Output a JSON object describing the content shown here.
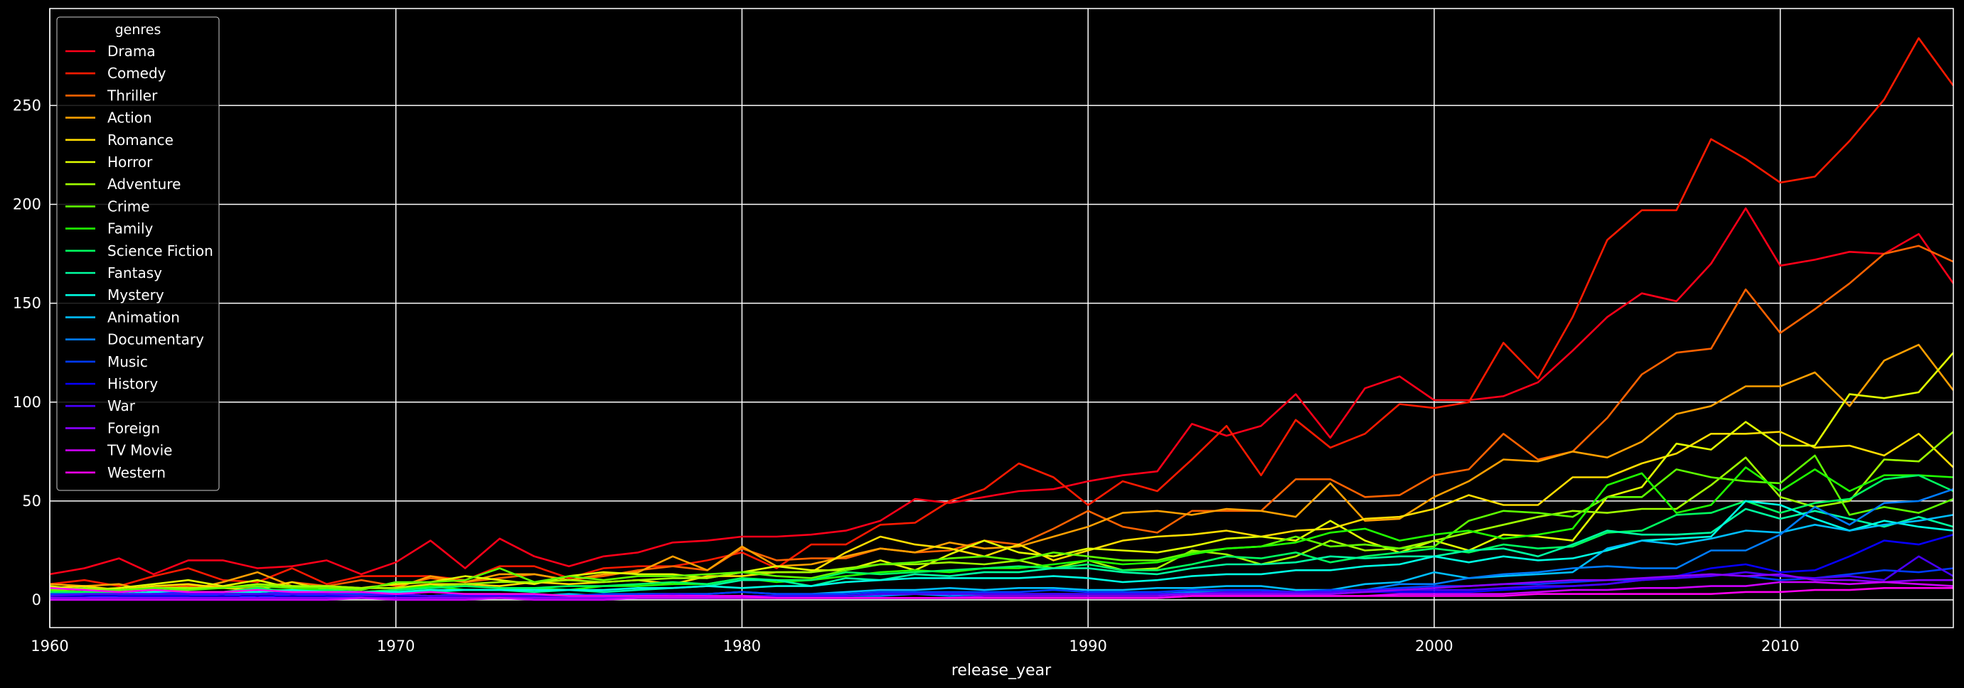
{
  "chart_data": {
    "type": "line",
    "xlabel": "release_year",
    "ylabel": "",
    "xlim": [
      1960,
      2015
    ],
    "ylim": [
      -14,
      299
    ],
    "xticks": [
      1960,
      1970,
      1980,
      1990,
      2000,
      2010
    ],
    "yticks": [
      0,
      50,
      100,
      150,
      200,
      250
    ],
    "grid": true,
    "legend_title": "genres",
    "legend_position": "top-left",
    "x": [
      1960,
      1961,
      1962,
      1963,
      1964,
      1965,
      1966,
      1967,
      1968,
      1969,
      1970,
      1971,
      1972,
      1973,
      1974,
      1975,
      1976,
      1977,
      1978,
      1979,
      1980,
      1981,
      1982,
      1983,
      1984,
      1985,
      1986,
      1987,
      1988,
      1989,
      1990,
      1991,
      1992,
      1993,
      1994,
      1995,
      1996,
      1997,
      1998,
      1999,
      2000,
      2001,
      2002,
      2003,
      2004,
      2005,
      2006,
      2007,
      2008,
      2009,
      2010,
      2011,
      2012,
      2013,
      2014,
      2015
    ],
    "series": [
      {
        "name": "Drama",
        "color": "#ff0019",
        "values": [
          13,
          16,
          21,
          13,
          20,
          20,
          16,
          17,
          20,
          13,
          19,
          30,
          16,
          31,
          22,
          17,
          22,
          24,
          29,
          30,
          32,
          32,
          33,
          35,
          40,
          51,
          49,
          52,
          55,
          56,
          60,
          63,
          65,
          89,
          83,
          88,
          104,
          82,
          107,
          113,
          101,
          101,
          103,
          110,
          126,
          143,
          155,
          151,
          170,
          198,
          169,
          172,
          176,
          175,
          185,
          160
        ]
      },
      {
        "name": "Comedy",
        "color": "#ff1a00",
        "values": [
          8,
          10,
          7,
          12,
          16,
          10,
          9,
          16,
          8,
          12,
          12,
          12,
          10,
          17,
          17,
          11,
          16,
          17,
          17,
          20,
          24,
          16,
          28,
          28,
          38,
          39,
          50,
          56,
          69,
          62,
          48,
          60,
          55,
          71,
          88,
          63,
          91,
          77,
          84,
          99,
          97,
          100,
          130,
          112,
          143,
          182,
          197,
          197,
          233,
          223,
          211,
          214,
          232,
          253,
          284,
          260
        ]
      },
      {
        "name": "Thriller",
        "color": "#ff6200",
        "values": [
          5,
          4,
          5,
          6,
          7,
          7,
          6,
          9,
          7,
          10,
          7,
          11,
          9,
          11,
          13,
          10,
          12,
          15,
          17,
          15,
          26,
          20,
          21,
          21,
          26,
          24,
          25,
          30,
          28,
          36,
          45,
          37,
          34,
          45,
          45,
          45,
          61,
          61,
          52,
          53,
          63,
          66,
          84,
          71,
          75,
          92,
          114,
          125,
          127,
          157,
          135,
          147,
          160,
          175,
          179,
          171
        ]
      },
      {
        "name": "Action",
        "color": "#ff9f00",
        "values": [
          8,
          7,
          8,
          4,
          5,
          9,
          14,
          7,
          6,
          6,
          6,
          12,
          9,
          13,
          13,
          10,
          13,
          14,
          22,
          15,
          27,
          17,
          18,
          22,
          26,
          24,
          29,
          26,
          27,
          32,
          37,
          44,
          45,
          43,
          46,
          45,
          42,
          59,
          40,
          41,
          52,
          60,
          71,
          70,
          75,
          72,
          80,
          94,
          98,
          108,
          108,
          115,
          98,
          121,
          129,
          106
        ]
      },
      {
        "name": "Romance",
        "color": "#ffdd00",
        "values": [
          6,
          7,
          5,
          7,
          8,
          6,
          5,
          9,
          5,
          6,
          6,
          8,
          8,
          7,
          9,
          8,
          9,
          10,
          8,
          12,
          12,
          14,
          14,
          24,
          32,
          28,
          26,
          22,
          28,
          20,
          25,
          30,
          32,
          33,
          35,
          32,
          35,
          36,
          41,
          42,
          46,
          53,
          48,
          48,
          62,
          62,
          69,
          74,
          84,
          84,
          85,
          77,
          78,
          73,
          84,
          67
        ]
      },
      {
        "name": "Horror",
        "color": "#e1ff00",
        "values": [
          7,
          5,
          6,
          8,
          10,
          7,
          10,
          6,
          7,
          6,
          8,
          9,
          12,
          10,
          8,
          12,
          14,
          13,
          13,
          11,
          14,
          17,
          15,
          15,
          20,
          15,
          23,
          30,
          24,
          22,
          26,
          25,
          24,
          27,
          31,
          32,
          30,
          40,
          30,
          24,
          30,
          25,
          33,
          32,
          30,
          52,
          57,
          79,
          76,
          90,
          78,
          78,
          104,
          102,
          105,
          125
        ]
      },
      {
        "name": "Adventure",
        "color": "#9fff00",
        "values": [
          5,
          6,
          5,
          6,
          6,
          6,
          8,
          7,
          7,
          6,
          6,
          7,
          8,
          9,
          9,
          10,
          9,
          10,
          11,
          11,
          14,
          14,
          14,
          16,
          18,
          18,
          19,
          18,
          20,
          16,
          20,
          15,
          16,
          25,
          23,
          18,
          22,
          30,
          25,
          26,
          30,
          34,
          38,
          42,
          45,
          44,
          46,
          46,
          58,
          72,
          52,
          47,
          50,
          71,
          70,
          85
        ]
      },
      {
        "name": "Crime",
        "color": "#5dff00",
        "values": [
          5,
          4,
          5,
          6,
          5,
          6,
          7,
          6,
          6,
          5,
          9,
          9,
          10,
          16,
          9,
          12,
          10,
          12,
          12,
          13,
          14,
          12,
          11,
          15,
          18,
          19,
          21,
          22,
          20,
          24,
          22,
          20,
          20,
          24,
          26,
          27,
          32,
          27,
          28,
          26,
          27,
          40,
          45,
          44,
          42,
          52,
          52,
          66,
          62,
          60,
          59,
          73,
          43,
          47,
          44,
          51
        ]
      },
      {
        "name": "Family",
        "color": "#1fff00",
        "values": [
          3,
          4,
          4,
          5,
          4,
          4,
          5,
          5,
          5,
          4,
          5,
          7,
          5,
          5,
          6,
          5,
          7,
          7,
          8,
          8,
          11,
          9,
          10,
          12,
          14,
          15,
          14,
          16,
          16,
          18,
          20,
          18,
          19,
          23,
          26,
          27,
          29,
          34,
          36,
          30,
          33,
          35,
          31,
          33,
          36,
          58,
          64,
          44,
          48,
          67,
          55,
          66,
          55,
          63,
          63,
          62
        ]
      },
      {
        "name": "Science Fiction",
        "color": "#00ff5f",
        "values": [
          4,
          4,
          4,
          5,
          4,
          4,
          6,
          4,
          5,
          4,
          5,
          6,
          7,
          6,
          6,
          7,
          7,
          8,
          9,
          8,
          11,
          10,
          10,
          14,
          13,
          14,
          15,
          16,
          17,
          16,
          18,
          15,
          15,
          18,
          22,
          21,
          24,
          19,
          22,
          24,
          26,
          24,
          28,
          26,
          27,
          34,
          35,
          43,
          44,
          50,
          44,
          49,
          51,
          61,
          63,
          55
        ]
      },
      {
        "name": "Fantasy",
        "color": "#00ffa1",
        "values": [
          2,
          3,
          3,
          3,
          4,
          3,
          3,
          4,
          3,
          4,
          4,
          4,
          5,
          5,
          4,
          5,
          4,
          5,
          6,
          7,
          10,
          10,
          7,
          11,
          10,
          13,
          12,
          14,
          14,
          16,
          16,
          14,
          13,
          16,
          18,
          18,
          19,
          22,
          21,
          22,
          22,
          25,
          26,
          22,
          28,
          35,
          33,
          33,
          34,
          46,
          41,
          45,
          41,
          37,
          42,
          37
        ]
      },
      {
        "name": "Mystery",
        "color": "#00ffe3",
        "values": [
          3,
          3,
          3,
          4,
          4,
          4,
          4,
          5,
          4,
          4,
          4,
          5,
          5,
          5,
          5,
          5,
          5,
          6,
          6,
          7,
          6,
          7,
          7,
          9,
          10,
          11,
          11,
          11,
          11,
          12,
          11,
          9,
          10,
          12,
          13,
          13,
          15,
          15,
          17,
          18,
          22,
          19,
          22,
          20,
          21,
          25,
          30,
          31,
          32,
          50,
          48,
          41,
          35,
          40,
          37,
          35
        ]
      },
      {
        "name": "Animation",
        "color": "#00beff",
        "values": [
          1,
          1,
          2,
          2,
          2,
          3,
          1,
          3,
          2,
          2,
          3,
          2,
          3,
          3,
          2,
          3,
          2,
          3,
          3,
          3,
          4,
          3,
          3,
          4,
          5,
          5,
          6,
          5,
          6,
          6,
          5,
          5,
          6,
          6,
          7,
          7,
          5,
          5,
          8,
          9,
          14,
          11,
          12,
          13,
          14,
          26,
          30,
          28,
          31,
          35,
          34,
          38,
          35,
          38,
          40,
          43
        ]
      },
      {
        "name": "Documentary",
        "color": "#007cff",
        "values": [
          1,
          1,
          1,
          1,
          1,
          1,
          1,
          1,
          1,
          1,
          1,
          1,
          1,
          1,
          1,
          1,
          1,
          1,
          1,
          1,
          2,
          2,
          2,
          2,
          2,
          3,
          2,
          3,
          3,
          3,
          3,
          3,
          3,
          4,
          4,
          4,
          4,
          4,
          5,
          8,
          8,
          11,
          13,
          14,
          16,
          17,
          16,
          16,
          25,
          25,
          33,
          47,
          38,
          49,
          50,
          56
        ]
      },
      {
        "name": "Music",
        "color": "#003aff",
        "values": [
          3,
          3,
          3,
          3,
          4,
          3,
          3,
          4,
          3,
          3,
          3,
          2,
          3,
          2,
          3,
          2,
          3,
          3,
          3,
          3,
          4,
          3,
          3,
          3,
          4,
          4,
          4,
          4,
          4,
          5,
          4,
          4,
          4,
          5,
          5,
          5,
          4,
          5,
          5,
          6,
          7,
          7,
          8,
          8,
          9,
          10,
          10,
          12,
          13,
          12,
          10,
          11,
          13,
          15,
          14,
          16
        ]
      },
      {
        "name": "History",
        "color": "#0700ff",
        "values": [
          2,
          2,
          2,
          2,
          2,
          2,
          2,
          2,
          2,
          2,
          2,
          2,
          2,
          2,
          2,
          2,
          2,
          2,
          2,
          2,
          2,
          2,
          2,
          2,
          3,
          3,
          3,
          3,
          3,
          3,
          3,
          3,
          3,
          3,
          3,
          3,
          3,
          3,
          4,
          4,
          4,
          4,
          5,
          6,
          7,
          8,
          10,
          12,
          16,
          18,
          14,
          15,
          22,
          30,
          28,
          33
        ]
      },
      {
        "name": "War",
        "color": "#4900ff",
        "values": [
          2,
          3,
          3,
          3,
          3,
          3,
          3,
          3,
          3,
          2,
          3,
          2,
          2,
          2,
          2,
          2,
          2,
          2,
          3,
          2,
          2,
          2,
          2,
          2,
          3,
          3,
          3,
          3,
          3,
          3,
          3,
          3,
          3,
          3,
          4,
          4,
          4,
          4,
          5,
          5,
          5,
          5,
          6,
          7,
          7,
          8,
          10,
          11,
          12,
          14,
          12,
          11,
          12,
          10,
          22,
          12
        ]
      },
      {
        "name": "Foreign",
        "color": "#8b00ff",
        "values": [
          1,
          1,
          1,
          1,
          1,
          1,
          1,
          1,
          1,
          1,
          1,
          1,
          1,
          1,
          1,
          1,
          1,
          1,
          1,
          1,
          1,
          1,
          1,
          1,
          1,
          1,
          1,
          2,
          2,
          2,
          2,
          2,
          2,
          3,
          3,
          3,
          3,
          3,
          4,
          5,
          6,
          7,
          8,
          9,
          10,
          10,
          11,
          12,
          13,
          12,
          13,
          10,
          10,
          9,
          10,
          10
        ]
      },
      {
        "name": "TV Movie",
        "color": "#cd00ff",
        "values": [
          0,
          0,
          0,
          0,
          0,
          0,
          0,
          0,
          0,
          1,
          0,
          0,
          0,
          1,
          0,
          0,
          0,
          1,
          1,
          1,
          1,
          1,
          1,
          1,
          1,
          1,
          1,
          1,
          1,
          1,
          1,
          1,
          1,
          2,
          2,
          2,
          2,
          2,
          2,
          3,
          3,
          3,
          3,
          4,
          5,
          5,
          6,
          6,
          7,
          7,
          9,
          9,
          8,
          9,
          8,
          7
        ]
      },
      {
        "name": "Western",
        "color": "#ff00ef",
        "values": [
          6,
          5,
          4,
          5,
          4,
          4,
          5,
          4,
          4,
          4,
          3,
          4,
          3,
          3,
          3,
          2,
          2,
          2,
          2,
          2,
          2,
          1,
          1,
          1,
          1,
          1,
          1,
          1,
          1,
          1,
          1,
          1,
          1,
          2,
          2,
          2,
          2,
          2,
          2,
          2,
          2,
          2,
          2,
          3,
          3,
          3,
          3,
          3,
          3,
          4,
          4,
          5,
          5,
          6,
          6,
          6
        ]
      }
    ]
  }
}
